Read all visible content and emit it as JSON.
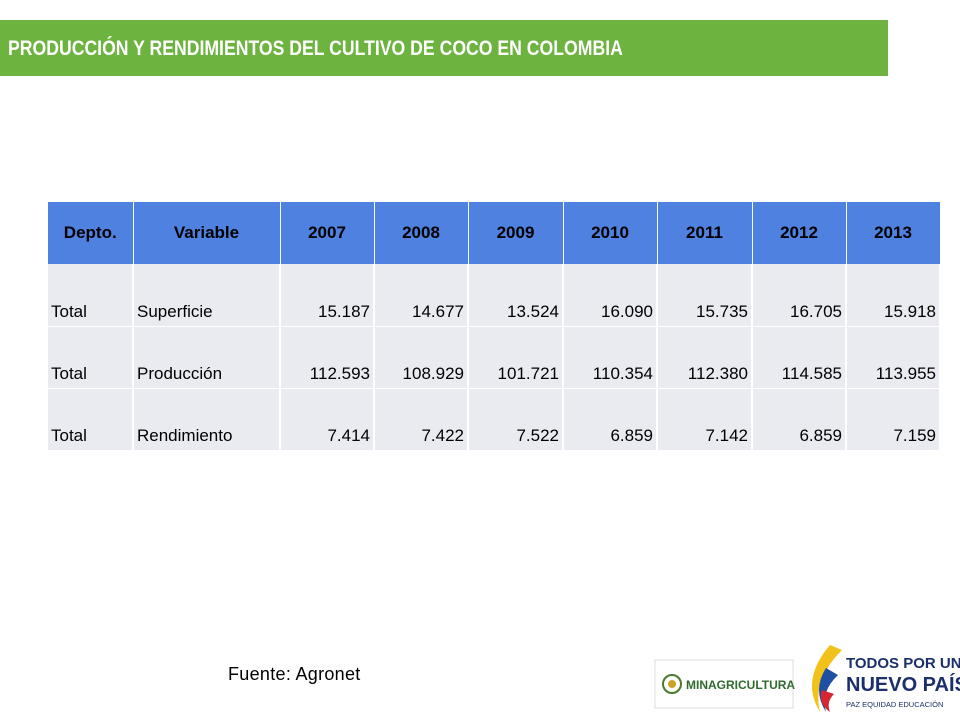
{
  "header": {
    "title": "PRODUCCIÓN Y RENDIMIENTOS DEL CULTIVO DE COCO EN COLOMBIA"
  },
  "table": {
    "columns": [
      "Depto.",
      "Variable",
      "2007",
      "2008",
      "2009",
      "2010",
      "2011",
      "2012",
      "2013"
    ],
    "rows": [
      [
        "Total",
        "Superficie",
        "15.187",
        "14.677",
        "13.524",
        "16.090",
        "15.735",
        "16.705",
        "15.918"
      ],
      [
        "Total",
        "Producción",
        "112.593",
        "108.929",
        "101.721",
        "110.354",
        "112.380",
        "114.585",
        "113.955"
      ],
      [
        "Total",
        "Rendimiento",
        "7.414",
        "7.422",
        "7.522",
        "6.859",
        "7.142",
        "6.859",
        "7.159"
      ]
    ]
  },
  "source": "Fuente: Agronet",
  "logos": {
    "ministry": "MINAGRICULTURA",
    "slogan_line1": "TODOS POR UN",
    "slogan_line2": "NUEVO PAÍS",
    "slogan_line3": "PAZ  EQUIDAD  EDUCACIÓN"
  }
}
